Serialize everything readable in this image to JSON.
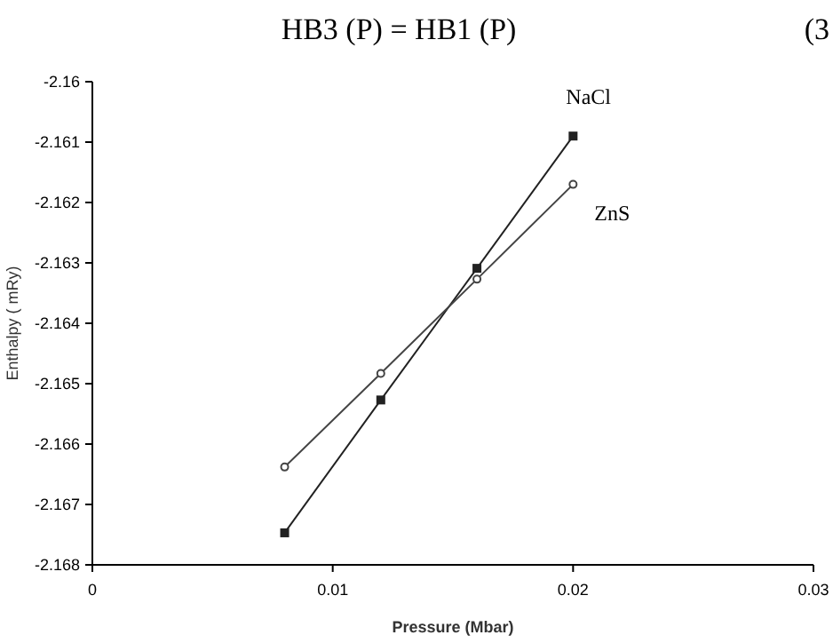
{
  "chart_data": {
    "type": "line",
    "title": "HB3 (P) = HB1 (P)",
    "annotations": [
      "(3"
    ],
    "xlabel": "Pressure (Mbar)",
    "ylabel": "Enthalpy ( mRy)",
    "x": [
      0.008,
      0.012,
      0.016,
      0.02
    ],
    "series": [
      {
        "name": "NaCl",
        "color": "#222222",
        "marker": "square",
        "values": [
          -2.16747,
          -2.16527,
          -2.16309,
          -2.1609
        ]
      },
      {
        "name": "ZnS",
        "color": "#444444",
        "marker": "circle",
        "values": [
          -2.16638,
          -2.16483,
          -2.16327,
          -2.1617
        ]
      }
    ],
    "xlim": [
      0,
      0.03
    ],
    "xticks": [
      0,
      0.01,
      0.02,
      0.03
    ],
    "ylim": [
      -2.168,
      -2.16
    ],
    "yticks": [
      -2.16,
      -2.161,
      -2.162,
      -2.163,
      -2.164,
      -2.165,
      -2.166,
      -2.167,
      -2.168
    ],
    "grid": false,
    "line_style": "solid"
  }
}
